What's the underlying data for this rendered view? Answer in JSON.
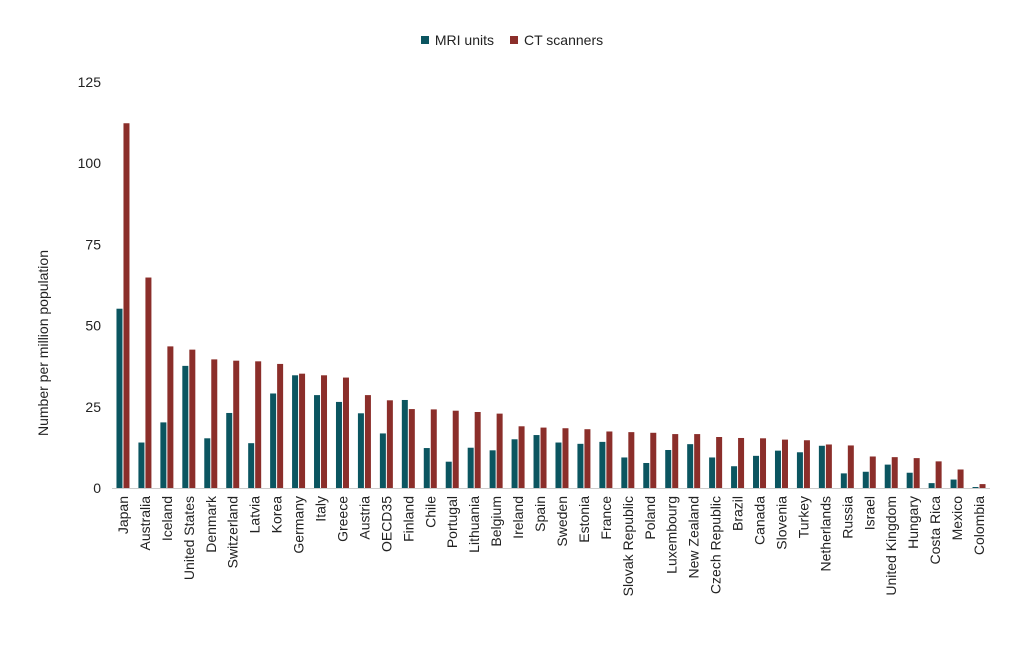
{
  "chart_data": {
    "type": "bar",
    "ylabel": "Number per million population",
    "xlabel": "",
    "ylim": [
      0,
      125
    ],
    "yticks": [
      0,
      25,
      50,
      75,
      100,
      125
    ],
    "legend_position": "top-center",
    "categories": [
      "Japan",
      "Australia",
      "Iceland",
      "United States",
      "Denmark",
      "Switzerland",
      "Latvia",
      "Korea",
      "Germany",
      "Italy",
      "Greece",
      "Austria",
      "OECD35",
      "Finland",
      "Chile",
      "Portugal",
      "Lithuania",
      "Belgium",
      "Ireland",
      "Spain",
      "Sweden",
      "Estonia",
      "France",
      "Slovak Republic",
      "Poland",
      "Luxembourg",
      "New Zealand",
      "Czech Republic",
      "Brazil",
      "Canada",
      "Slovenia",
      "Turkey",
      "Netherlands",
      "Russia",
      "Israel",
      "United Kingdom",
      "Hungary",
      "Costa Rica",
      "Mexico",
      "Colombia"
    ],
    "series": [
      {
        "name": "MRI units",
        "color": "#0b5560",
        "values": [
          55.2,
          14.0,
          20.2,
          37.6,
          15.3,
          23.1,
          13.8,
          29.1,
          34.7,
          28.6,
          26.5,
          23.0,
          16.8,
          27.1,
          12.3,
          8.1,
          12.4,
          11.6,
          15.0,
          16.3,
          14.0,
          13.6,
          14.2,
          9.4,
          7.7,
          11.7,
          13.5,
          9.4,
          6.7,
          9.9,
          11.5,
          11.0,
          13.0,
          4.5,
          5.0,
          7.2,
          4.7,
          1.5,
          2.6,
          0.3
        ]
      },
      {
        "name": "CT scanners",
        "color": "#8b2e2a",
        "values": [
          112.3,
          64.8,
          43.6,
          42.6,
          39.6,
          39.2,
          39.0,
          38.2,
          35.2,
          34.7,
          34.0,
          28.6,
          27.0,
          24.3,
          24.2,
          23.8,
          23.4,
          22.9,
          19.0,
          18.6,
          18.4,
          18.1,
          17.4,
          17.2,
          17.0,
          16.6,
          16.6,
          15.7,
          15.4,
          15.3,
          14.9,
          14.7,
          13.4,
          13.1,
          9.7,
          9.5,
          9.2,
          8.2,
          5.7,
          1.2
        ]
      }
    ]
  }
}
